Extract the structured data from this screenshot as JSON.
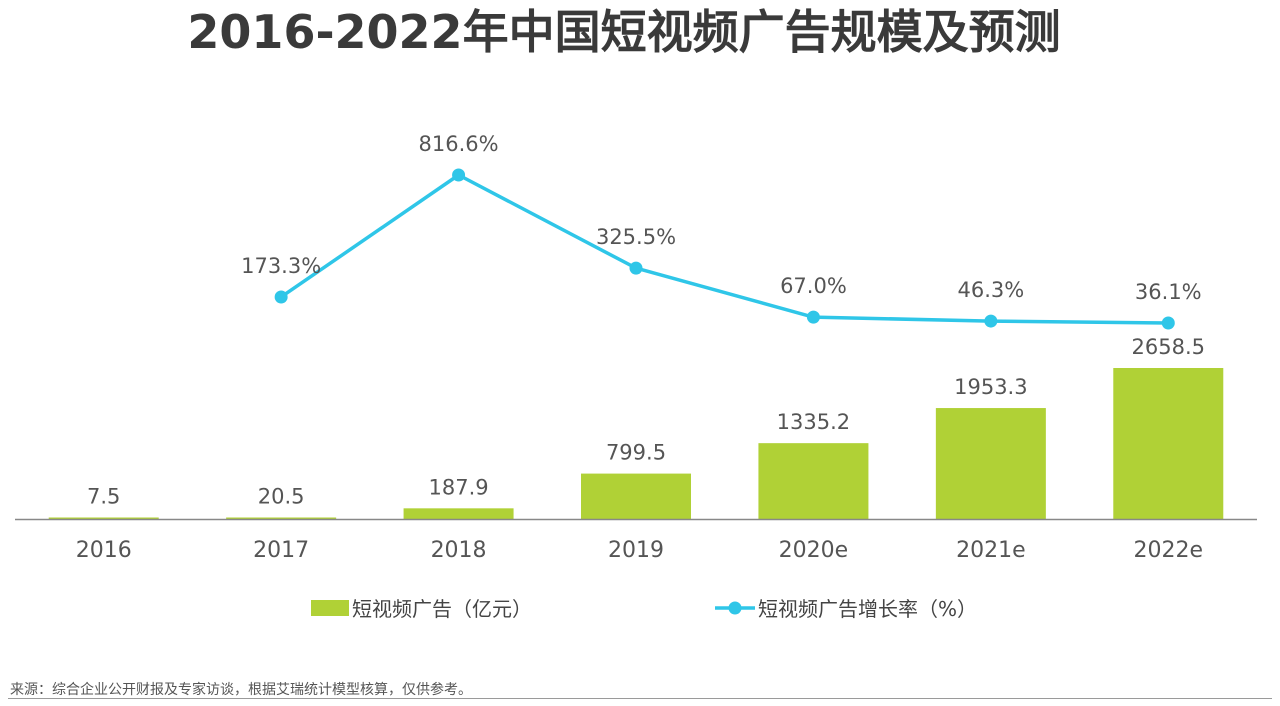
{
  "title": "2016-2022年中国短视频广告规模及预测",
  "source": "来源：综合企业公开财报及专家访谈，根据艾瑞统计模型核算，仅供参考。",
  "colors": {
    "bar": "#b0d136",
    "line": "#2fc6e8",
    "text": "#555555",
    "axis": "#888888"
  },
  "chart_data": {
    "type": "bar+line",
    "categories": [
      "2016",
      "2017",
      "2018",
      "2019",
      "2020e",
      "2021e",
      "2022e"
    ],
    "series": [
      {
        "name": "短视频广告（亿元）",
        "type": "bar",
        "values": [
          7.5,
          20.5,
          187.9,
          799.5,
          1335.2,
          1953.3,
          2658.5
        ],
        "labels": [
          "7.5",
          "20.5",
          "187.9",
          "799.5",
          "1335.2",
          "1953.3",
          "2658.5"
        ]
      },
      {
        "name": "短视频广告增长率（%）",
        "type": "line",
        "values": [
          null,
          173.3,
          816.6,
          325.5,
          67.0,
          46.3,
          36.1
        ],
        "labels": [
          "",
          "173.3%",
          "816.6%",
          "325.5%",
          "67.0%",
          "46.3%",
          "36.1%"
        ]
      }
    ],
    "legend_position": "bottom",
    "grid": false
  }
}
